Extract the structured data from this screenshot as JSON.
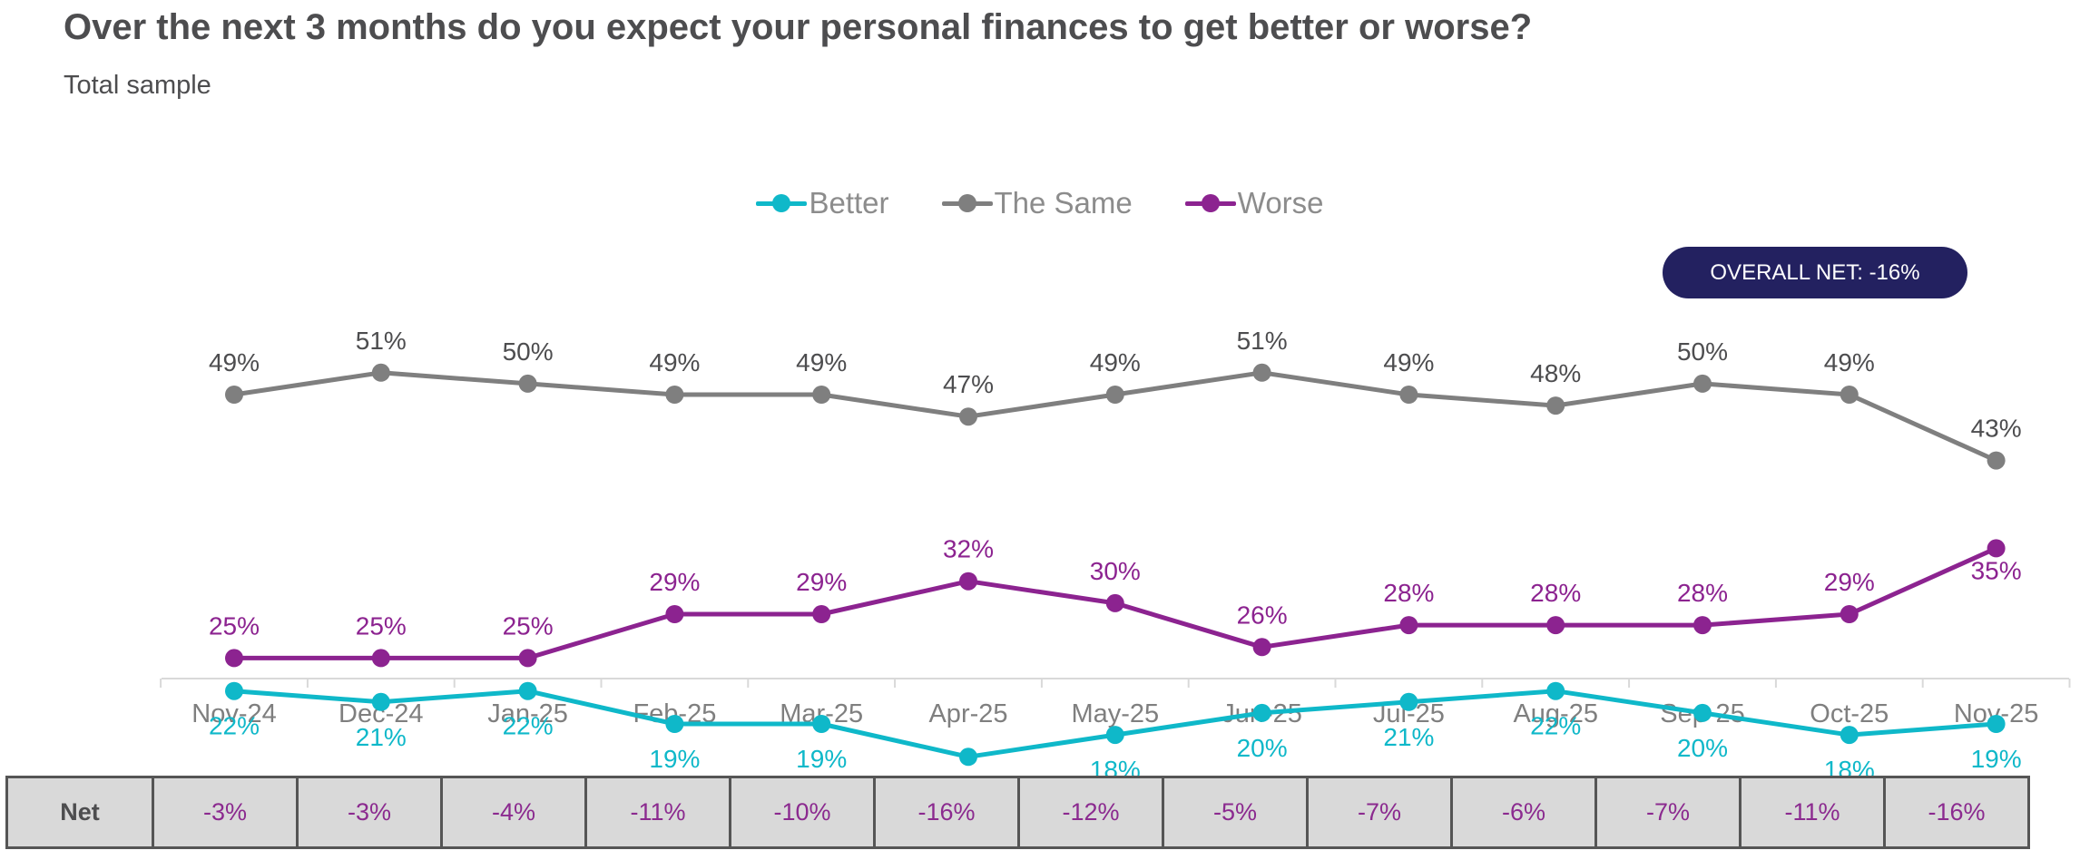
{
  "title": "Over the next 3 months do you expect your personal finances to get better or worse?",
  "subtitle": "Total sample",
  "overall_net": "OVERALL NET: -16%",
  "colors": {
    "better": "#0fb8c9",
    "same": "#7f7f7f",
    "worse": "#8c2390",
    "pill": "#232160",
    "net_text": "#8b2a8f"
  },
  "chart_data": {
    "type": "line",
    "categories": [
      "Nov-24",
      "Dec-24",
      "Jan-25",
      "Feb-25",
      "Mar-25",
      "Apr-25",
      "May-25",
      "Jun-25",
      "Jul-25",
      "Aug-25",
      "Sep-25",
      "Oct-25",
      "Nov-25"
    ],
    "series": [
      {
        "name": "Better",
        "color": "#0fb8c9",
        "values": [
          22,
          21,
          22,
          19,
          19,
          16,
          18,
          20,
          21,
          22,
          20,
          18,
          19
        ]
      },
      {
        "name": "The Same",
        "color": "#7f7f7f",
        "values": [
          49,
          51,
          50,
          49,
          49,
          47,
          49,
          51,
          49,
          48,
          50,
          49,
          43
        ]
      },
      {
        "name": "Worse",
        "color": "#8c2390",
        "values": [
          25,
          25,
          25,
          29,
          29,
          32,
          30,
          26,
          28,
          28,
          28,
          29,
          35
        ]
      }
    ],
    "value_suffix": "%",
    "ylim": [
      10,
      55
    ],
    "legend_position": "top-center"
  },
  "net_row": {
    "label": "Net",
    "values": [
      "-3%",
      "-3%",
      "-4%",
      "-11%",
      "-10%",
      "-16%",
      "-12%",
      "-5%",
      "-7%",
      "-6%",
      "-7%",
      "-11%",
      "-16%"
    ]
  }
}
